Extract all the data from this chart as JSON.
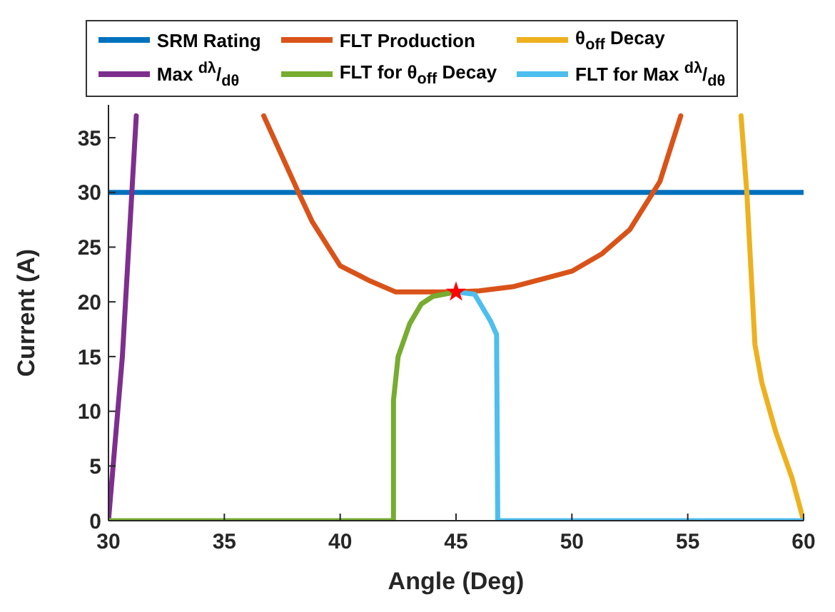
{
  "chart_data": {
    "type": "line",
    "xlabel": "Angle (Deg)",
    "ylabel": "Current (A)",
    "xlim": [
      30,
      60
    ],
    "ylim": [
      0,
      38
    ],
    "xticks": [
      30,
      35,
      40,
      45,
      50,
      55,
      60
    ],
    "yticks": [
      0,
      5,
      10,
      15,
      20,
      25,
      30,
      35
    ],
    "grid": false,
    "legend": "top",
    "marker": "none",
    "line_style": "solid",
    "series": [
      {
        "name": "SRM Rating",
        "color": "#0072bd",
        "x": [
          30,
          60
        ],
        "values": [
          30,
          30
        ]
      },
      {
        "name": "FLT Production",
        "color": "#d95319",
        "x": [
          36.7,
          38.2,
          38.8,
          40.0,
          41.3,
          42.4,
          43.5,
          45,
          46,
          47.5,
          50.0,
          51.3,
          52.5,
          53.8,
          54.7
        ],
        "values": [
          37,
          30,
          27.3,
          23.3,
          21.9,
          20.9,
          20.9,
          20.9,
          21.0,
          21.4,
          22.8,
          24.4,
          26.6,
          31.0,
          37
        ]
      },
      {
        "name": "θ$_{off}$ Decay",
        "color": "#edb120",
        "x": [
          57.3,
          57.55,
          57.9,
          58.2,
          58.8,
          59.5,
          60
        ],
        "values": [
          37,
          30,
          16.1,
          12.6,
          8.1,
          3.9,
          0
        ]
      },
      {
        "name": "Max $^{dλ}$/$_{dθ}$",
        "color": "#7e2f8e",
        "x": [
          30,
          30.6,
          31.2
        ],
        "values": [
          0,
          15,
          37
        ]
      },
      {
        "name": "FLT for θ$_{off}$ Decay",
        "color": "#77ac30",
        "x": [
          30,
          42.3,
          42.3,
          42.5,
          43,
          43.5,
          44,
          45
        ],
        "values": [
          0,
          0,
          11,
          15,
          18,
          19.8,
          20.5,
          20.9
        ]
      },
      {
        "name": "FLT for Max $^{dλ}$/$_{dθ}$",
        "color": "#4dbeee",
        "x": [
          45,
          45.8,
          46.5,
          46.75,
          46.8,
          60
        ],
        "values": [
          20.9,
          20.7,
          18.2,
          17,
          0,
          0
        ]
      },
      {
        "type": "scatter",
        "marker": "star",
        "color": "#ff0000",
        "x": [
          45
        ],
        "values": [
          20.9
        ]
      }
    ]
  }
}
